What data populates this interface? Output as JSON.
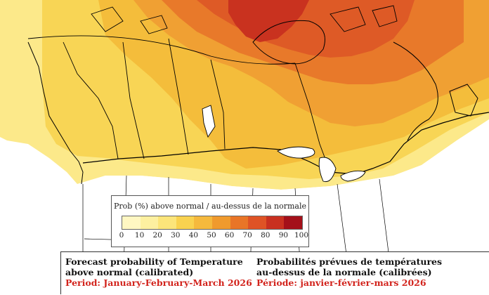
{
  "legend": {
    "title": "Prob (%) above normal / au-dessus de la normale",
    "ticks": [
      "0",
      "10",
      "20",
      "30",
      "40",
      "50",
      "60",
      "70",
      "80",
      "90",
      "100"
    ],
    "colors": [
      "#fff7c2",
      "#fdf0a0",
      "#fce57a",
      "#f9d24f",
      "#f5b93d",
      "#f09a2d",
      "#e97527",
      "#df5325",
      "#c93020",
      "#a4101a"
    ]
  },
  "caption": {
    "english": {
      "line1": "Forecast probability of Temperature",
      "line2": "above normal (calibrated)",
      "period": "Period: January-February-March 2026"
    },
    "french": {
      "line1": "Probabilités prévues de températures",
      "line2": "au-dessus de la normale (calibrées)",
      "period": "Période: janvier-février-mars 2026"
    }
  },
  "map_colors": {
    "land_base": "#fdf1a8",
    "pale_yellow": "#fce98a",
    "yellow": "#f8d555",
    "gold": "#f4bd3b",
    "orange": "#f0a033",
    "dark_orange": "#e8792a",
    "red_orange": "#de5a26",
    "red": "#c9321f",
    "usa_land": "#ffffff",
    "border": "#000000"
  }
}
